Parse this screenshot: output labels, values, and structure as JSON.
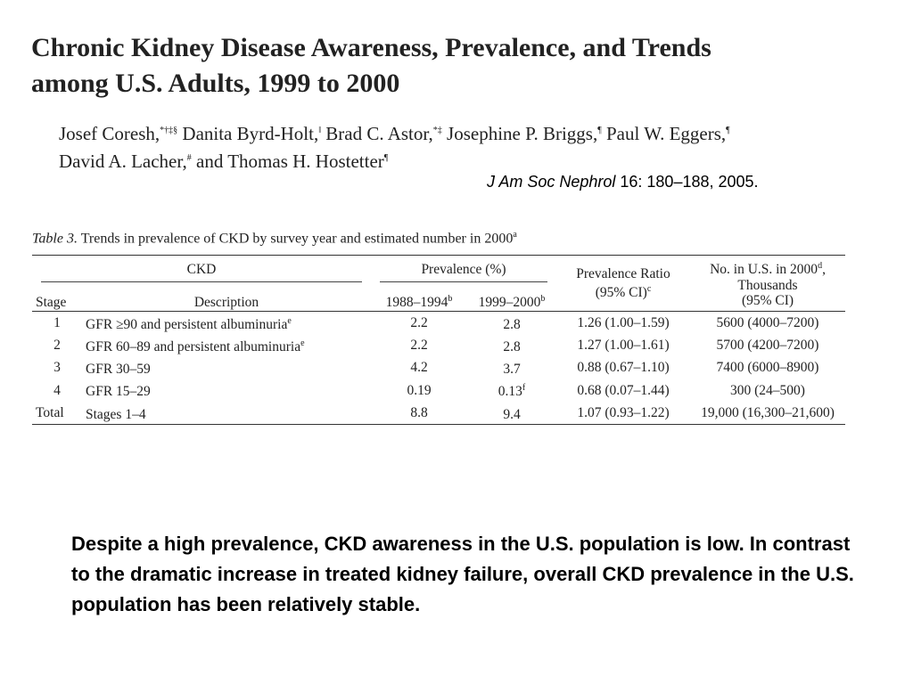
{
  "paper": {
    "title_line1": "Chronic Kidney Disease Awareness, Prevalence, and Trends",
    "title_line2": "among U.S. Adults, 1999 to 2000",
    "authors_line1": [
      {
        "name": "Josef Coresh,",
        "sup": "*†‡§"
      },
      {
        "name": " Danita Byrd-Holt,",
        "sup": "‖"
      },
      {
        "name": " Brad C. Astor,",
        "sup": "*‡"
      },
      {
        "name": " Josephine P. Briggs,",
        "sup": "¶"
      },
      {
        "name": " Paul W. Eggers,",
        "sup": "¶"
      }
    ],
    "authors_line2": [
      {
        "name": "David A. Lacher,",
        "sup": "#"
      },
      {
        "name": " and Thomas H. Hostetter",
        "sup": "¶"
      }
    ],
    "citation_journal": "J Am Soc Nephrol",
    "citation_rest": " 16: 180–188, 2005."
  },
  "table": {
    "caption_label": "Table 3.",
    "caption_text": " Trends in prevalence of CKD by survey year and estimated number in 2000",
    "caption_sup": "a",
    "group_headers": {
      "ckd": "CKD",
      "prevalence": "Prevalence (%)",
      "ratio_line1": "Prevalence Ratio",
      "ratio_line2": "(95% CI)",
      "ratio_sup": "c",
      "number_line1": "No. in U.S. in 2000",
      "number_sup": "d",
      "number_line1_end": ",",
      "number_line2": "Thousands",
      "number_line3": "(95% CI)"
    },
    "sub_headers": {
      "stage": "Stage",
      "description": "Description",
      "period1": "1988–1994",
      "period1_sup": "b",
      "period2": "1999–2000",
      "period2_sup": "b"
    },
    "rows": [
      {
        "stage": "1",
        "description": "GFR ≥90 and persistent albuminuria",
        "desc_sup": "e",
        "p1": "2.2",
        "p2": "2.8",
        "p2_sup": "",
        "ratio": "1.26 (1.00–1.59)",
        "number": "5600 (4000–7200)"
      },
      {
        "stage": "2",
        "description": "GFR 60–89 and persistent albuminuria",
        "desc_sup": "e",
        "p1": "2.2",
        "p2": "2.8",
        "p2_sup": "",
        "ratio": "1.27 (1.00–1.61)",
        "number": "5700 (4200–7200)"
      },
      {
        "stage": "3",
        "description": "GFR 30–59",
        "desc_sup": "",
        "p1": "4.2",
        "p2": "3.7",
        "p2_sup": "",
        "ratio": "0.88 (0.67–1.10)",
        "number": "7400 (6000–8900)"
      },
      {
        "stage": "4",
        "description": "GFR 15–29",
        "desc_sup": "",
        "p1": "0.19",
        "p2": "0.13",
        "p2_sup": "f",
        "ratio": "0.68 (0.07–1.44)",
        "number": "300 (24–500)"
      },
      {
        "stage": "Total",
        "description": "Stages 1–4",
        "desc_sup": "",
        "p1": "8.8",
        "p2": "9.4",
        "p2_sup": "",
        "ratio": "1.07 (0.93–1.22)",
        "number": "19,000 (16,300–21,600)"
      }
    ]
  },
  "summary": "Despite a high prevalence, CKD awareness in the U.S. population is low. In contrast to the dramatic increase in treated kidney failure, overall CKD prevalence in the U.S. population has been relatively stable."
}
